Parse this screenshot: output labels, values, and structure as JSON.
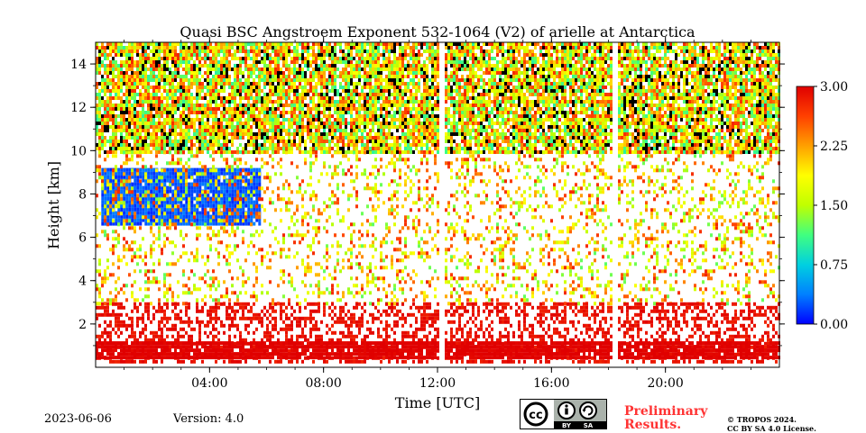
{
  "chart_data": {
    "type": "heatmap",
    "title": "Quasi BSC Angstroem Exponent 532-1064 (V2) of arielle at Antarctica",
    "xlabel": "Time [UTC]",
    "ylabel": "Height [km]",
    "xlim": [
      0,
      24
    ],
    "ylim": [
      0,
      15
    ],
    "x_ticks": [
      4,
      8,
      12,
      16,
      20
    ],
    "x_tick_labels": [
      "04:00",
      "08:00",
      "12:00",
      "16:00",
      "20:00"
    ],
    "y_ticks": [
      2,
      4,
      6,
      8,
      10,
      12,
      14
    ],
    "y_tick_labels": [
      "2",
      "4",
      "6",
      "8",
      "10",
      "12",
      "14"
    ],
    "colorbar": {
      "range": [
        0.0,
        3.0
      ],
      "ticks": [
        0.0,
        0.75,
        1.5,
        2.25,
        3.0
      ],
      "tick_labels": [
        "0.00",
        "0.75",
        "1.50",
        "2.25",
        "3.00"
      ],
      "colormap": [
        "#0000ff",
        "#0080ff",
        "#00d0e0",
        "#40ff80",
        "#c0ff00",
        "#ffff00",
        "#ffa000",
        "#ff4000",
        "#e00000"
      ]
    },
    "data_gaps_utc": [
      12.1,
      18.2
    ],
    "regions": [
      {
        "x_range": [
          0,
          24
        ],
        "y_range": [
          10,
          15
        ],
        "value_mean": 1.9,
        "value_spread": 0.9,
        "coverage": 0.85
      },
      {
        "x_range": [
          0.2,
          5.8
        ],
        "y_range": [
          6.6,
          9.2
        ],
        "value_mean": 0.25,
        "value_spread": 0.15,
        "coverage": 0.95
      },
      {
        "x_range": [
          0,
          24
        ],
        "y_range": [
          3,
          10
        ],
        "value_mean": 2.0,
        "value_spread": 0.8,
        "coverage": 0.25
      },
      {
        "x_range": [
          0,
          24
        ],
        "y_range": [
          0.3,
          3
        ],
        "value_mean": 2.9,
        "value_spread": 0.1,
        "coverage": 0.45
      },
      {
        "x_range": [
          0,
          24
        ],
        "y_range": [
          0.5,
          1.2
        ],
        "value_mean": 3.0,
        "value_spread": 0.05,
        "coverage": 0.9
      }
    ]
  },
  "footer": {
    "date": "2023-06-06",
    "version": "Version: 4.0",
    "license_badge": "cc-by-sa-icon",
    "license_badge_text": [
      "BY",
      "SA"
    ],
    "preliminary_line1": "Preliminary",
    "preliminary_line2": "Results.",
    "copyright_line1": "© TROPOS 2024.",
    "copyright_line2": "CC BY SA 4.0 License.",
    "preliminary_color": "#ff3333"
  }
}
